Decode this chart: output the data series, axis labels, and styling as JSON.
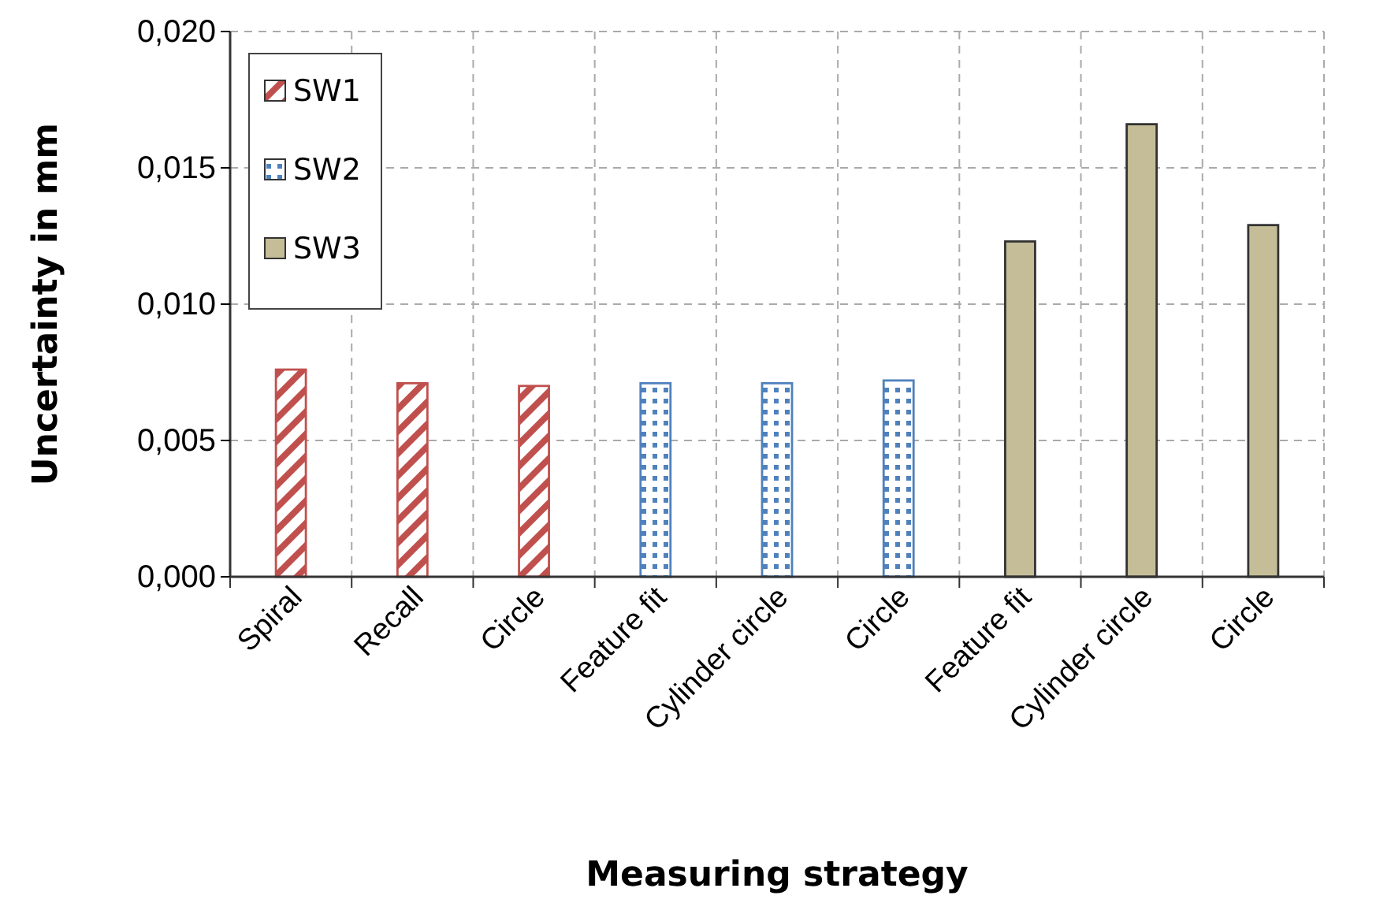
{
  "chart_data": {
    "type": "bar",
    "xlabel": "Measuring strategy",
    "ylabel": "Uncertainty in mm",
    "categories": [
      "Spiral",
      "Recall",
      "Circle",
      "Feature fit",
      "Cylinder circle",
      "Circle",
      "Feature fit",
      "Cylinder circle",
      "Circle"
    ],
    "series": [
      {
        "name": "SW1",
        "color": "#c0504d",
        "values": [
          0.0076,
          0.0071,
          0.007,
          null,
          null,
          null,
          null,
          null,
          null
        ]
      },
      {
        "name": "SW2",
        "color": "#4f81bd",
        "values": [
          null,
          null,
          null,
          0.0071,
          0.0071,
          0.0072,
          null,
          null,
          null
        ]
      },
      {
        "name": "SW3",
        "color": "#c4bd97",
        "values": [
          null,
          null,
          null,
          null,
          null,
          null,
          0.0123,
          0.0166,
          0.0129
        ]
      }
    ],
    "ylim": [
      0,
      0.02
    ],
    "yticks": [
      {
        "value": 0,
        "label": "0,000"
      },
      {
        "value": 0.005,
        "label": "0,005"
      },
      {
        "value": 0.01,
        "label": "0,010"
      },
      {
        "value": 0.015,
        "label": "0,015"
      },
      {
        "value": 0.02,
        "label": "0,020"
      }
    ],
    "grid": true,
    "legend": "top left"
  }
}
